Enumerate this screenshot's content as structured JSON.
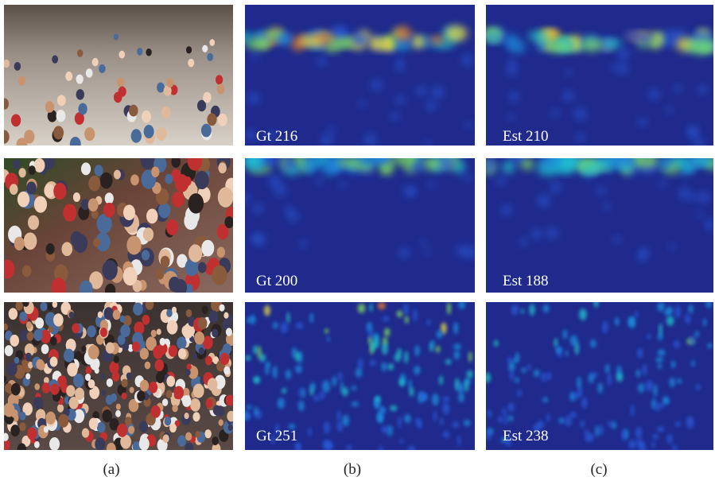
{
  "panels": [
    {
      "ground_truth": "Gt 216",
      "estimate": "Est 210"
    },
    {
      "ground_truth": "Gt 200",
      "estimate": "Est 188"
    },
    {
      "ground_truth": "Gt 251",
      "estimate": "Est 238"
    }
  ],
  "captions": [
    "(a)",
    "(b)",
    "(c)"
  ]
}
